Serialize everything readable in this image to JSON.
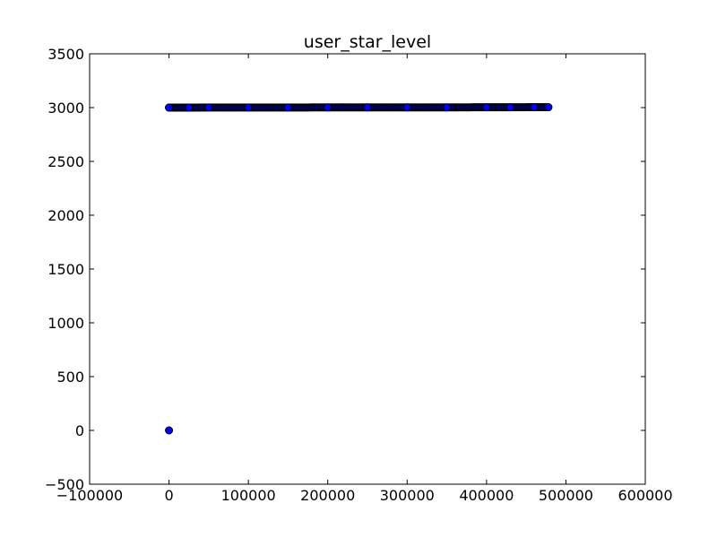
{
  "chart_data": {
    "type": "scatter",
    "title": "user_star_level",
    "xlabel": "",
    "ylabel": "",
    "xlim": [
      -100000,
      600000
    ],
    "ylim": [
      -500,
      3500
    ],
    "x_ticks": [
      -100000,
      0,
      100000,
      200000,
      300000,
      400000,
      500000,
      600000
    ],
    "y_ticks": [
      -500,
      0,
      500,
      1000,
      1500,
      2000,
      2500,
      3000,
      3500
    ],
    "grid": false,
    "legend": "none",
    "marker_face_color": "#0000ff",
    "marker_edge_color": "#000000",
    "series": [
      {
        "points": [
          {
            "x": 0,
            "y": 3000
          },
          {
            "x": 25000,
            "y": 3000
          },
          {
            "x": 50000,
            "y": 3001
          },
          {
            "x": 100000,
            "y": 3001
          },
          {
            "x": 150000,
            "y": 3001
          },
          {
            "x": 200000,
            "y": 3002
          },
          {
            "x": 250000,
            "y": 3002
          },
          {
            "x": 300000,
            "y": 3002
          },
          {
            "x": 350000,
            "y": 3002
          },
          {
            "x": 400000,
            "y": 3003
          },
          {
            "x": 430000,
            "y": 3003
          },
          {
            "x": 460000,
            "y": 3004
          },
          {
            "x": 478000,
            "y": 3004
          },
          {
            "x": 0,
            "y": 0
          }
        ]
      }
    ]
  }
}
